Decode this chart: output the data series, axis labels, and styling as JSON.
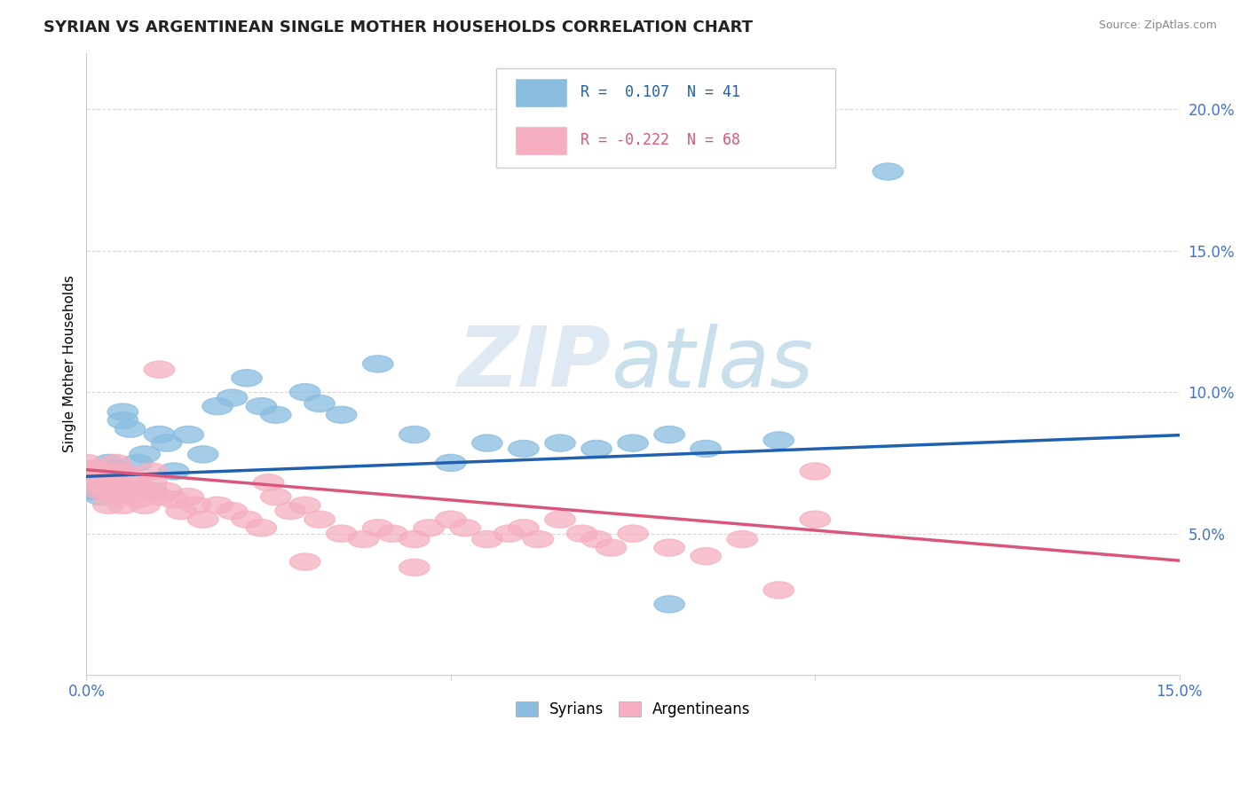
{
  "title": "SYRIAN VS ARGENTINEAN SINGLE MOTHER HOUSEHOLDS CORRELATION CHART",
  "source": "Source: ZipAtlas.com",
  "ylabel": "Single Mother Households",
  "xlim": [
    0.0,
    0.15
  ],
  "ylim": [
    0.0,
    0.22
  ],
  "yticks": [
    0.05,
    0.1,
    0.15,
    0.2
  ],
  "ytick_labels": [
    "5.0%",
    "10.0%",
    "15.0%",
    "20.0%"
  ],
  "xtick_labels": [
    "0.0%",
    "15.0%"
  ],
  "syrians_color": "#89bde0",
  "argentineans_color": "#f5afc0",
  "trend_syrian_color": "#2060b0",
  "trend_argentinean_color": "#d9567a",
  "watermark_zip_color": "#c5d8ea",
  "watermark_atlas_color": "#9fc5dd",
  "syrians": [
    [
      0.0,
      0.07
    ],
    [
      0.001,
      0.065
    ],
    [
      0.001,
      0.072
    ],
    [
      0.002,
      0.068
    ],
    [
      0.002,
      0.063
    ],
    [
      0.003,
      0.075
    ],
    [
      0.003,
      0.07
    ],
    [
      0.004,
      0.068
    ],
    [
      0.004,
      0.073
    ],
    [
      0.005,
      0.09
    ],
    [
      0.005,
      0.093
    ],
    [
      0.006,
      0.087
    ],
    [
      0.007,
      0.075
    ],
    [
      0.008,
      0.078
    ],
    [
      0.009,
      0.065
    ],
    [
      0.01,
      0.085
    ],
    [
      0.011,
      0.082
    ],
    [
      0.012,
      0.072
    ],
    [
      0.014,
      0.085
    ],
    [
      0.016,
      0.078
    ],
    [
      0.018,
      0.095
    ],
    [
      0.02,
      0.098
    ],
    [
      0.022,
      0.105
    ],
    [
      0.024,
      0.095
    ],
    [
      0.026,
      0.092
    ],
    [
      0.03,
      0.1
    ],
    [
      0.032,
      0.096
    ],
    [
      0.035,
      0.092
    ],
    [
      0.04,
      0.11
    ],
    [
      0.045,
      0.085
    ],
    [
      0.05,
      0.075
    ],
    [
      0.055,
      0.082
    ],
    [
      0.06,
      0.08
    ],
    [
      0.065,
      0.082
    ],
    [
      0.07,
      0.08
    ],
    [
      0.075,
      0.082
    ],
    [
      0.08,
      0.085
    ],
    [
      0.085,
      0.08
    ],
    [
      0.095,
      0.083
    ],
    [
      0.11,
      0.178
    ],
    [
      0.08,
      0.025
    ]
  ],
  "argentineans": [
    [
      0.0,
      0.075
    ],
    [
      0.0,
      0.072
    ],
    [
      0.001,
      0.07
    ],
    [
      0.001,
      0.068
    ],
    [
      0.001,
      0.073
    ],
    [
      0.002,
      0.068
    ],
    [
      0.002,
      0.065
    ],
    [
      0.002,
      0.07
    ],
    [
      0.003,
      0.065
    ],
    [
      0.003,
      0.068
    ],
    [
      0.003,
      0.072
    ],
    [
      0.003,
      0.06
    ],
    [
      0.004,
      0.075
    ],
    [
      0.004,
      0.068
    ],
    [
      0.004,
      0.063
    ],
    [
      0.005,
      0.072
    ],
    [
      0.005,
      0.065
    ],
    [
      0.005,
      0.06
    ],
    [
      0.006,
      0.07
    ],
    [
      0.006,
      0.065
    ],
    [
      0.007,
      0.068
    ],
    [
      0.007,
      0.062
    ],
    [
      0.008,
      0.065
    ],
    [
      0.008,
      0.06
    ],
    [
      0.009,
      0.068
    ],
    [
      0.009,
      0.072
    ],
    [
      0.01,
      0.108
    ],
    [
      0.01,
      0.063
    ],
    [
      0.011,
      0.065
    ],
    [
      0.012,
      0.062
    ],
    [
      0.013,
      0.058
    ],
    [
      0.014,
      0.063
    ],
    [
      0.015,
      0.06
    ],
    [
      0.016,
      0.055
    ],
    [
      0.018,
      0.06
    ],
    [
      0.02,
      0.058
    ],
    [
      0.022,
      0.055
    ],
    [
      0.024,
      0.052
    ],
    [
      0.025,
      0.068
    ],
    [
      0.026,
      0.063
    ],
    [
      0.028,
      0.058
    ],
    [
      0.03,
      0.06
    ],
    [
      0.032,
      0.055
    ],
    [
      0.035,
      0.05
    ],
    [
      0.038,
      0.048
    ],
    [
      0.04,
      0.052
    ],
    [
      0.042,
      0.05
    ],
    [
      0.045,
      0.048
    ],
    [
      0.047,
      0.052
    ],
    [
      0.05,
      0.055
    ],
    [
      0.052,
      0.052
    ],
    [
      0.055,
      0.048
    ],
    [
      0.058,
      0.05
    ],
    [
      0.06,
      0.052
    ],
    [
      0.062,
      0.048
    ],
    [
      0.065,
      0.055
    ],
    [
      0.068,
      0.05
    ],
    [
      0.07,
      0.048
    ],
    [
      0.072,
      0.045
    ],
    [
      0.075,
      0.05
    ],
    [
      0.08,
      0.045
    ],
    [
      0.085,
      0.042
    ],
    [
      0.09,
      0.048
    ],
    [
      0.095,
      0.03
    ],
    [
      0.1,
      0.072
    ],
    [
      0.1,
      0.055
    ],
    [
      0.03,
      0.04
    ],
    [
      0.045,
      0.038
    ]
  ],
  "legend_R_syrian": "R =  0.107  N = 41",
  "legend_R_arg": "R = -0.222  N = 68",
  "legend_syrian_text_color": "#2060b0",
  "legend_arg_text_color": "#d9567a",
  "legend_bottom": [
    "Syrians",
    "Argentineans"
  ]
}
